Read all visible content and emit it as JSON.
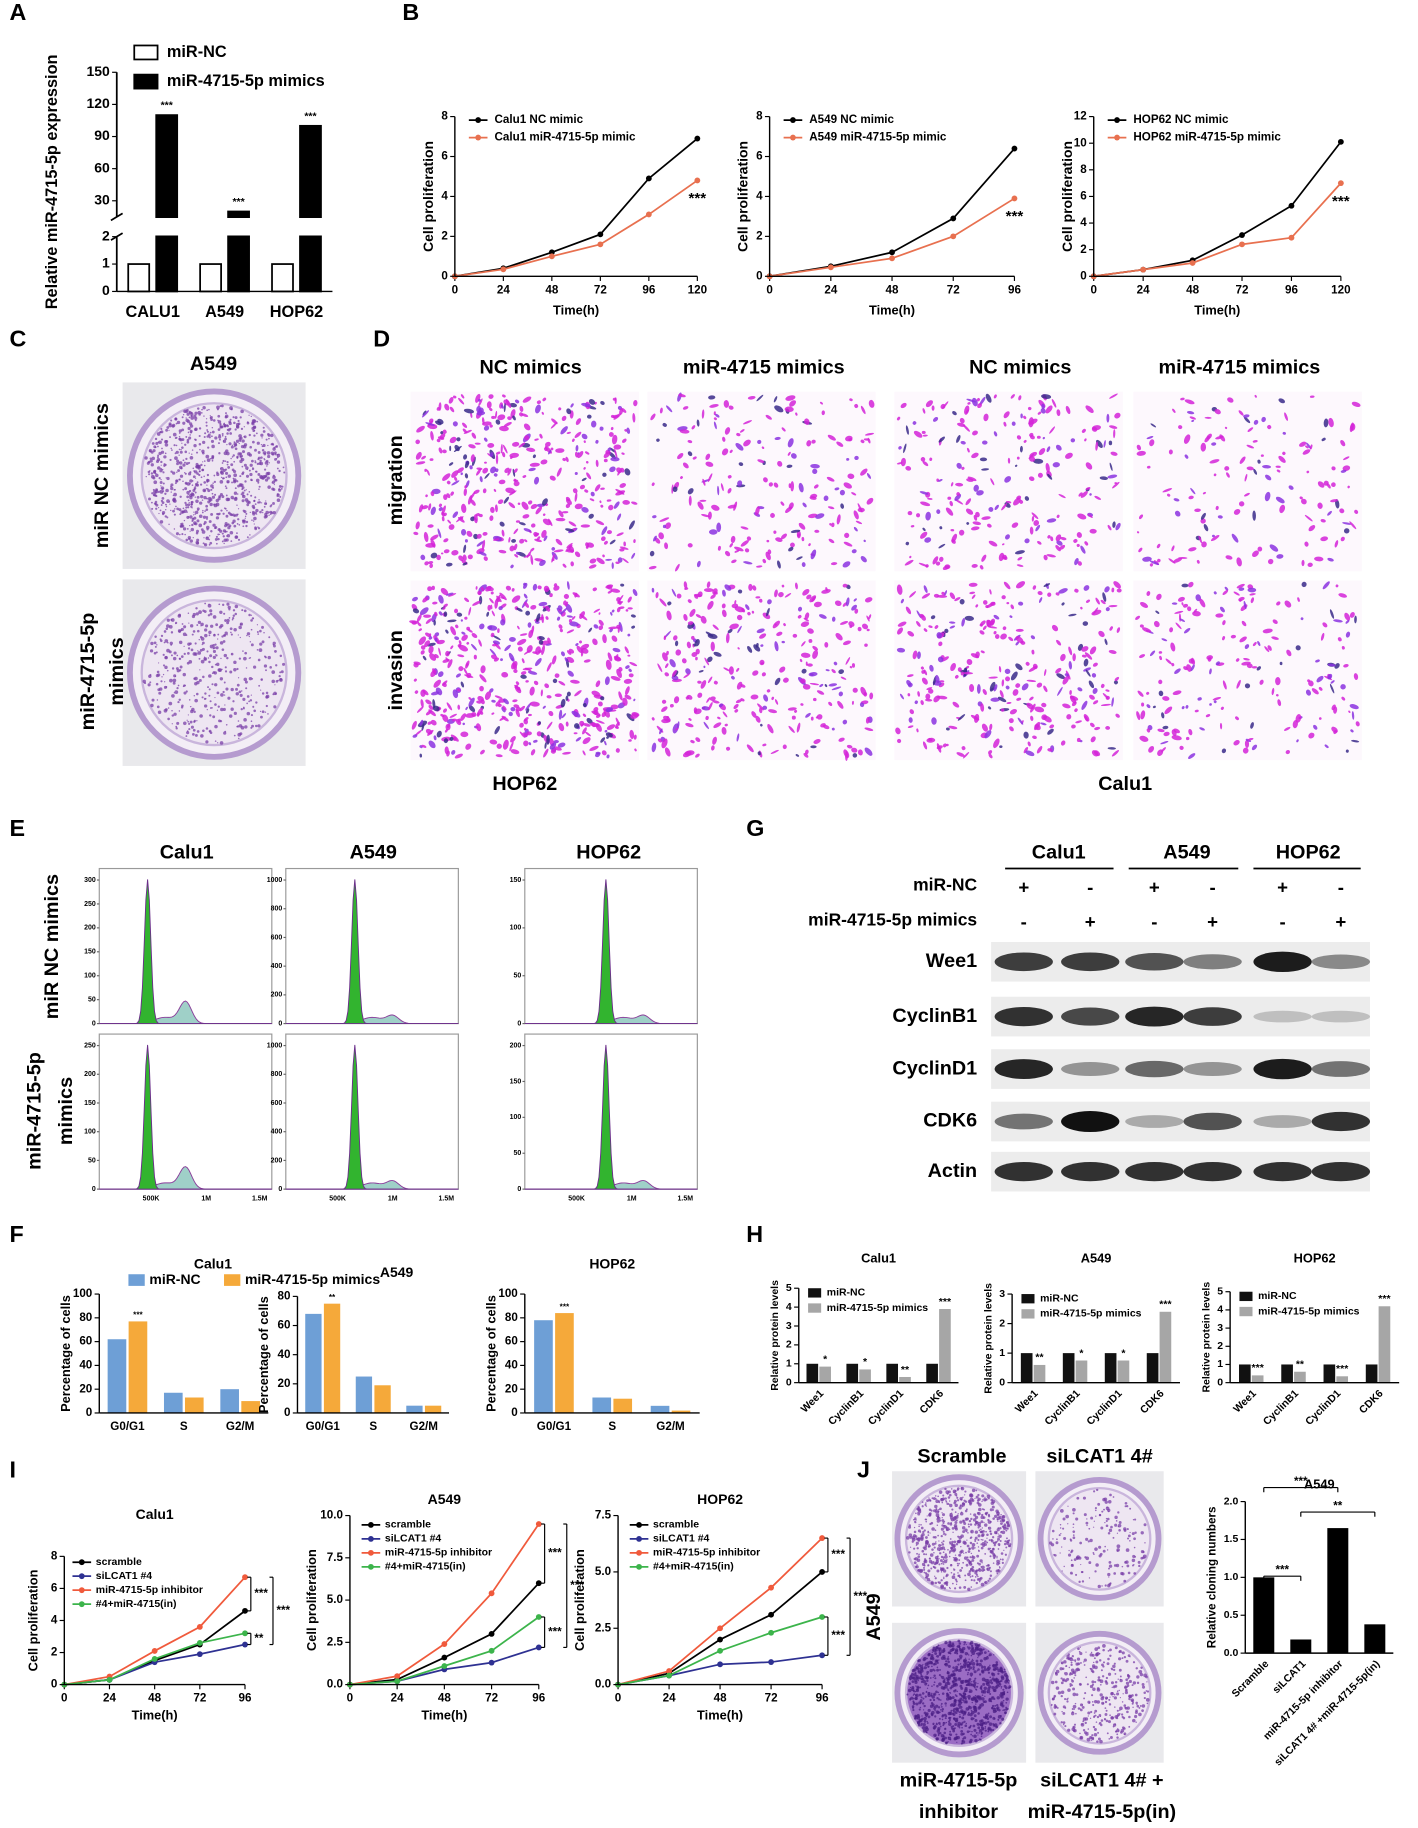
{
  "panel_labels": [
    "A",
    "B",
    "C",
    "D",
    "E",
    "F",
    "G",
    "H",
    "I",
    "J"
  ],
  "chart_data": [
    {
      "type": "bar",
      "ylabel": "Relative miR-4715-5p expression",
      "categories": [
        "CALU1",
        "A549",
        "HOP62"
      ],
      "series": [
        {
          "name": "miR-NC",
          "color": "#ffffff",
          "values": [
            1,
            1,
            1
          ]
        },
        {
          "name": "miR-4715-5p mimics",
          "color": "#000000",
          "values": [
            110,
            20,
            100
          ]
        }
      ],
      "ylim": [
        0,
        150
      ],
      "ybreak": [
        2,
        15
      ],
      "yticks": [
        0,
        1,
        2,
        30,
        60,
        90,
        120,
        150
      ],
      "annotations": [
        "***",
        "***",
        "***"
      ]
    },
    {
      "type": "line",
      "x": [
        0,
        24,
        48,
        72,
        96,
        120
      ],
      "xlim": [
        0,
        120
      ],
      "xticks": [
        0,
        24,
        48,
        72,
        96,
        120
      ],
      "xlabel": "Time(h)",
      "ylabel": "Cell proliferation",
      "ylim": [
        0,
        8
      ],
      "yticks": [
        0,
        2,
        4,
        6,
        8
      ],
      "series": [
        {
          "name": "Calu1 NC mimic",
          "color": "#000000",
          "values": [
            0,
            0.4,
            1.2,
            2.1,
            4.9,
            6.9
          ]
        },
        {
          "name": "Calu1 miR-4715-5p mimic",
          "color": "#e8704f",
          "values": [
            0,
            0.35,
            1.0,
            1.6,
            3.1,
            4.8
          ]
        }
      ],
      "annotations": [
        "***"
      ]
    },
    {
      "type": "line",
      "x": [
        0,
        24,
        48,
        72,
        96
      ],
      "xlim": [
        0,
        96
      ],
      "xticks": [
        0,
        24,
        48,
        72,
        96
      ],
      "xlabel": "Time(h)",
      "ylabel": "Cell proliferation",
      "ylim": [
        0,
        8
      ],
      "yticks": [
        0,
        2,
        4,
        6,
        8
      ],
      "series": [
        {
          "name": "A549 NC mimic",
          "color": "#000000",
          "values": [
            0,
            0.5,
            1.2,
            2.9,
            6.4
          ]
        },
        {
          "name": "A549 miR-4715-5p mimic",
          "color": "#e8704f",
          "values": [
            0,
            0.45,
            0.9,
            2.0,
            3.9
          ]
        }
      ],
      "annotations": [
        "***"
      ]
    },
    {
      "type": "line",
      "x": [
        0,
        24,
        48,
        72,
        96,
        120
      ],
      "xlim": [
        0,
        120
      ],
      "xticks": [
        0,
        24,
        48,
        72,
        96,
        120
      ],
      "xlabel": "Time(h)",
      "ylabel": "Cell proliferation",
      "ylim": [
        0,
        12
      ],
      "yticks": [
        0,
        2,
        4,
        6,
        8,
        10,
        12
      ],
      "series": [
        {
          "name": "HOP62 NC mimic",
          "color": "#000000",
          "values": [
            0,
            0.5,
            1.2,
            3.1,
            5.3,
            10.1
          ]
        },
        {
          "name": "HOP62 miR-4715-5p mimic",
          "color": "#e8704f",
          "values": [
            0,
            0.5,
            1.0,
            2.4,
            2.9,
            7.0
          ]
        }
      ],
      "annotations": [
        "***"
      ]
    },
    {
      "type": "bar",
      "title": "Calu1",
      "ylabel": "Percentage of cells",
      "categories": [
        "G0/G1",
        "S",
        "G2/M"
      ],
      "ylim": [
        0,
        100
      ],
      "yticks": [
        0,
        20,
        40,
        60,
        80,
        100
      ],
      "series": [
        {
          "name": "miR-NC",
          "color": "#6e9fd6",
          "values": [
            62,
            17,
            20
          ]
        },
        {
          "name": "miR-4715-5p mimics",
          "color": "#f5a93a",
          "values": [
            77,
            13,
            10
          ]
        }
      ],
      "annotations": [
        "***"
      ]
    },
    {
      "type": "bar",
      "title": "A549",
      "ylabel": "Percentage of cells",
      "categories": [
        "G0/G1",
        "S",
        "G2/M"
      ],
      "ylim": [
        0,
        80
      ],
      "yticks": [
        0,
        20,
        40,
        60,
        80
      ],
      "series": [
        {
          "color": "#6e9fd6",
          "values": [
            68,
            25,
            5
          ]
        },
        {
          "color": "#f5a93a",
          "values": [
            75,
            19,
            5
          ]
        }
      ],
      "annotations": [
        "**"
      ]
    },
    {
      "type": "bar",
      "title": "HOP62",
      "ylabel": "Percentage of cells",
      "categories": [
        "G0/G1",
        "S",
        "G2/M"
      ],
      "ylim": [
        0,
        100
      ],
      "yticks": [
        0,
        20,
        40,
        60,
        80,
        100
      ],
      "series": [
        {
          "color": "#6e9fd6",
          "values": [
            78,
            13,
            6
          ]
        },
        {
          "color": "#f5a93a",
          "values": [
            84,
            12,
            2
          ]
        }
      ],
      "annotations": [
        "***"
      ]
    },
    {
      "type": "bar",
      "title": "Calu1",
      "ylabel": "Relative protein levels",
      "categories": [
        "Wee1",
        "CyclinB1",
        "CyclinD1",
        "CDK6"
      ],
      "ylim": [
        0,
        5
      ],
      "yticks": [
        0,
        1,
        2,
        3,
        4,
        5
      ],
      "series": [
        {
          "name": "miR-NC",
          "color": "#111111",
          "values": [
            1,
            1,
            1,
            1
          ]
        },
        {
          "name": "miR-4715-5p mimics",
          "color": "#a6a6a6",
          "values": [
            0.85,
            0.7,
            0.3,
            3.9
          ]
        }
      ],
      "annotations": [
        "*",
        "*",
        "**",
        "***"
      ]
    },
    {
      "type": "bar",
      "title": "A549",
      "ylabel": "Relative protein levels",
      "categories": [
        "Wee1",
        "CyclinB1",
        "CyclinD1",
        "CDK6"
      ],
      "ylim": [
        0,
        3
      ],
      "yticks": [
        0,
        1,
        2,
        3
      ],
      "series": [
        {
          "name": "miR-NC",
          "color": "#111111",
          "values": [
            1,
            1,
            1,
            1
          ]
        },
        {
          "name": "miR-4715-5p mimics",
          "color": "#a6a6a6",
          "values": [
            0.6,
            0.75,
            0.75,
            2.4
          ]
        }
      ],
      "annotations": [
        "**",
        "*",
        "*",
        "***"
      ]
    },
    {
      "type": "bar",
      "title": "HOP62",
      "ylabel": "Relative protein levels",
      "categories": [
        "Wee1",
        "CyclinB1",
        "CyclinD1",
        "CDK6"
      ],
      "ylim": [
        0,
        5
      ],
      "yticks": [
        0,
        1,
        2,
        3,
        4,
        5
      ],
      "series": [
        {
          "name": "miR-NC",
          "color": "#111111",
          "values": [
            1,
            1,
            1,
            1
          ]
        },
        {
          "name": "miR-4715-5p mimics",
          "color": "#a6a6a6",
          "values": [
            0.4,
            0.6,
            0.35,
            4.2
          ]
        }
      ],
      "annotations": [
        "***",
        "**",
        "***",
        "***"
      ]
    },
    {
      "type": "line",
      "title": "Calu1",
      "x": [
        0,
        24,
        48,
        72,
        96
      ],
      "xlim": [
        0,
        96
      ],
      "xticks": [
        0,
        24,
        48,
        72,
        96
      ],
      "xlabel": "Time(h)",
      "ylabel": "Cell proliferation",
      "ylim": [
        0,
        8
      ],
      "yticks": [
        0,
        2,
        4,
        6,
        8
      ],
      "series": [
        {
          "name": "scramble",
          "color": "#000000",
          "values": [
            0,
            0.3,
            1.5,
            2.5,
            4.6
          ]
        },
        {
          "name": "siLCAT1 #4",
          "color": "#2e3192",
          "values": [
            0,
            0.3,
            1.4,
            1.9,
            2.5
          ]
        },
        {
          "name": "miR-4715-5p inhibitor",
          "color": "#f05a3c",
          "values": [
            0,
            0.5,
            2.1,
            3.6,
            6.7
          ]
        },
        {
          "name": "#4+miR-4715(in)",
          "color": "#3cb44b",
          "values": [
            0,
            0.3,
            1.6,
            2.6,
            3.2
          ]
        }
      ],
      "annotations": [
        "***",
        "**",
        "***"
      ]
    },
    {
      "type": "line",
      "title": "A549",
      "x": [
        0,
        24,
        48,
        72,
        96
      ],
      "xlim": [
        0,
        96
      ],
      "xticks": [
        0,
        24,
        48,
        72,
        96
      ],
      "xlabel": "Time(h)",
      "ylabel": "Cell proliferation",
      "ylim": [
        0,
        10
      ],
      "yticks": [
        {
          "value": 0,
          "label": "0.0"
        },
        2.5,
        {
          "value": 5,
          "label": "5.0"
        },
        7.5,
        {
          "value": 10,
          "label": "10.0"
        }
      ],
      "series": [
        {
          "name": "scramble",
          "color": "#000000",
          "values": [
            0,
            0.3,
            1.6,
            3.0,
            6.0
          ]
        },
        {
          "name": "siLCAT1 #4",
          "color": "#2e3192",
          "values": [
            0,
            0.2,
            0.9,
            1.3,
            2.2
          ]
        },
        {
          "name": "miR-4715-5p inhibitor",
          "color": "#f05a3c",
          "values": [
            0,
            0.5,
            2.4,
            5.4,
            9.5
          ]
        },
        {
          "name": "#4+miR-4715(in)",
          "color": "#3cb44b",
          "values": [
            0,
            0.2,
            1.1,
            2.0,
            4.0
          ]
        }
      ],
      "annotations": [
        "***",
        "***",
        "***"
      ]
    },
    {
      "type": "line",
      "title": "HOP62",
      "x": [
        0,
        24,
        48,
        72,
        96
      ],
      "xlim": [
        0,
        96
      ],
      "xticks": [
        0,
        24,
        48,
        72,
        96
      ],
      "xlabel": "Time(h)",
      "ylabel": "Cell proliferation",
      "ylim": [
        0,
        7.5
      ],
      "yticks": [
        {
          "value": 0,
          "label": "0.0"
        },
        2.5,
        {
          "value": 5,
          "label": "5.0"
        },
        7.5
      ],
      "series": [
        {
          "name": "scramble",
          "color": "#000000",
          "values": [
            0,
            0.5,
            2.0,
            3.1,
            5.0
          ]
        },
        {
          "name": "siLCAT1 #4",
          "color": "#2e3192",
          "values": [
            0,
            0.4,
            0.9,
            1.0,
            1.3
          ]
        },
        {
          "name": "miR-4715-5p inhibitor",
          "color": "#f05a3c",
          "values": [
            0,
            0.6,
            2.5,
            4.3,
            6.5
          ]
        },
        {
          "name": "#4+miR-4715(in)",
          "color": "#3cb44b",
          "values": [
            0,
            0.4,
            1.5,
            2.3,
            3.0
          ]
        }
      ],
      "annotations": [
        "***",
        "***",
        "***"
      ]
    },
    {
      "type": "bar",
      "title": "A549",
      "ylabel": "Relative cloning numbers",
      "categories": [
        "Scramble",
        "siLCAT1",
        "miR-4715-5p inhibitor",
        "siLCAT1 4# +miR-4715-5p(in)"
      ],
      "values": [
        1.0,
        0.18,
        1.65,
        0.38
      ],
      "color": "#000000",
      "ylim": [
        0,
        2
      ],
      "yticks": [
        {
          "value": 0,
          "label": "0.0"
        },
        0.5,
        {
          "value": 1,
          "label": "1.0"
        },
        1.5,
        {
          "value": 2,
          "label": "2.0"
        }
      ],
      "annotations": [
        "***",
        "**",
        "***"
      ]
    }
  ],
  "colony_c": {
    "title": "A549",
    "rows": [
      [
        "miR NC mimics"
      ],
      [
        "miR-4715-5p",
        "mimics"
      ]
    ]
  },
  "transwell": {
    "columns": [
      "NC mimics",
      "miR-4715 mimics",
      "NC mimics",
      "miR-4715 mimics"
    ],
    "rows": [
      "migration",
      "invasion"
    ],
    "cells": [
      "HOP62",
      "Calu1"
    ]
  },
  "flow": {
    "columns": [
      "Calu1",
      "A549",
      "HOP62"
    ],
    "rows": [
      [
        "miR NC mimics"
      ],
      [
        "miR-4715-5p",
        "mimics"
      ]
    ],
    "panels": [
      {
        "yticks": [
          0,
          50,
          100,
          150,
          200,
          250,
          300
        ]
      },
      {
        "yticks": [
          0,
          200,
          400,
          600,
          800,
          1000
        ]
      },
      {
        "yticks": [
          0,
          50,
          100,
          150
        ]
      },
      {
        "yticks": [
          0,
          50,
          100,
          150,
          200,
          250
        ],
        "xticks": [
          "500K",
          "1M",
          "1.5M"
        ]
      },
      {
        "yticks": [
          0,
          200,
          400,
          600,
          800,
          1000
        ],
        "xticks": [
          "500K",
          "1M",
          "1.5M"
        ]
      },
      {
        "yticks": [
          0,
          50,
          100,
          150,
          200
        ],
        "xticks": [
          "500K",
          "1M",
          "1.5M"
        ]
      }
    ]
  },
  "western": {
    "cells": [
      "Calu1",
      "A549",
      "HOP62"
    ],
    "conditions": [
      {
        "name": "miR-NC",
        "signs": [
          "+",
          "-",
          "+",
          "-",
          "+",
          "-"
        ]
      },
      {
        "name": "miR-4715-5p mimics",
        "signs": [
          "-",
          "+",
          "-",
          "+",
          "-",
          "+"
        ]
      }
    ],
    "proteins": [
      "Wee1",
      "CyclinB1",
      "CyclinD1",
      "CDK6",
      "Actin"
    ]
  },
  "colony_j": {
    "columns": [
      "Scramble",
      "siLCAT1 4#"
    ],
    "row": "A549",
    "bottom": [
      [
        "miR-4715-5p",
        "inhibitor"
      ],
      [
        "siLCAT1 4# +",
        "miR-4715-5p(in)"
      ]
    ]
  }
}
